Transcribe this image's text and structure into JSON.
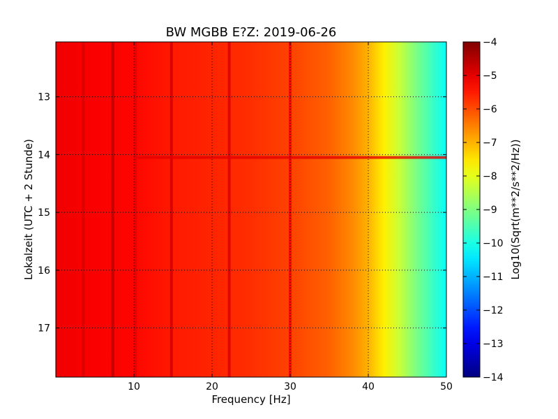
{
  "chart_data": {
    "type": "heatmap",
    "title": "BW MGBB E?Z: 2019-06-26",
    "xlabel": "Frequency [Hz]",
    "ylabel": "Lokalzeit (UTC + 2 Stunde)",
    "xlim": [
      0,
      50
    ],
    "ylim": [
      12.05,
      17.85
    ],
    "y_inverted": true,
    "x_ticks": [
      10,
      20,
      30,
      40,
      50
    ],
    "y_ticks": [
      13,
      14,
      15,
      16,
      17
    ],
    "grid": true,
    "colormap": "jet",
    "colorbar": {
      "label": "Log10(Sqrt(m**2/s**2/Hz))",
      "range": [
        -14,
        -4
      ],
      "ticks": [
        -4,
        -5,
        -6,
        -7,
        -8,
        -9,
        -10,
        -11,
        -12,
        -13,
        -14
      ]
    },
    "frequency_profile": {
      "frequency_hz": [
        0,
        5,
        10,
        15,
        20,
        25,
        30,
        35,
        38,
        40,
        42,
        44,
        46,
        48,
        50
      ],
      "level": [
        -5.1,
        -5.2,
        -5.3,
        -5.5,
        -5.6,
        -5.7,
        -5.9,
        -6.2,
        -6.6,
        -7.0,
        -7.6,
        -8.3,
        -9.0,
        -9.6,
        -10.2
      ]
    },
    "vertical_lines": [
      {
        "frequency_hz": 7.3,
        "level": -4.6
      },
      {
        "frequency_hz": 3.5,
        "level": -4.9
      },
      {
        "frequency_hz": 10.2,
        "level": -5.0
      },
      {
        "frequency_hz": 14.8,
        "level": -4.8
      },
      {
        "frequency_hz": 22.2,
        "level": -4.9
      },
      {
        "frequency_hz": 30.0,
        "level": -5.2
      }
    ],
    "horizontal_line": {
      "time": 14.05,
      "level": -5.0,
      "f_start": 10,
      "f_end": 50
    }
  }
}
